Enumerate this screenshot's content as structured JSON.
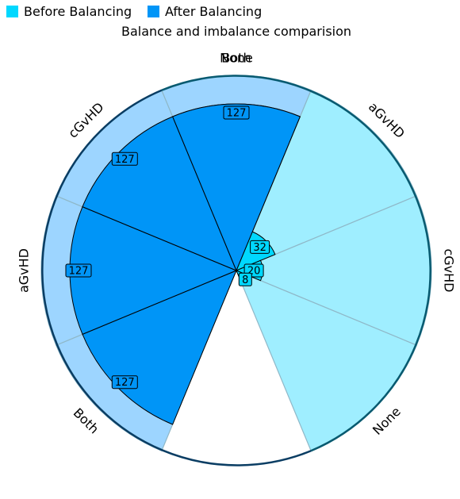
{
  "chart_data": {
    "type": "polar-bar",
    "title": "Balance and imbalance comparision",
    "legend_placement": "top-left",
    "max_value": 127,
    "series": [
      {
        "name": "Before Balancing",
        "color": "#00d8ff",
        "background_color": "#9feeff",
        "categories": [
          "Both",
          "aGvHD",
          "cGvHD",
          "None"
        ],
        "values": [
          127,
          32,
          20,
          8
        ]
      },
      {
        "name": "After Balancing",
        "color": "#0095f7",
        "background_color": "#9dd5ff",
        "categories": [
          "Both",
          "aGvHD",
          "cGvHD",
          "None"
        ],
        "values": [
          127,
          127,
          127,
          127
        ]
      }
    ]
  }
}
